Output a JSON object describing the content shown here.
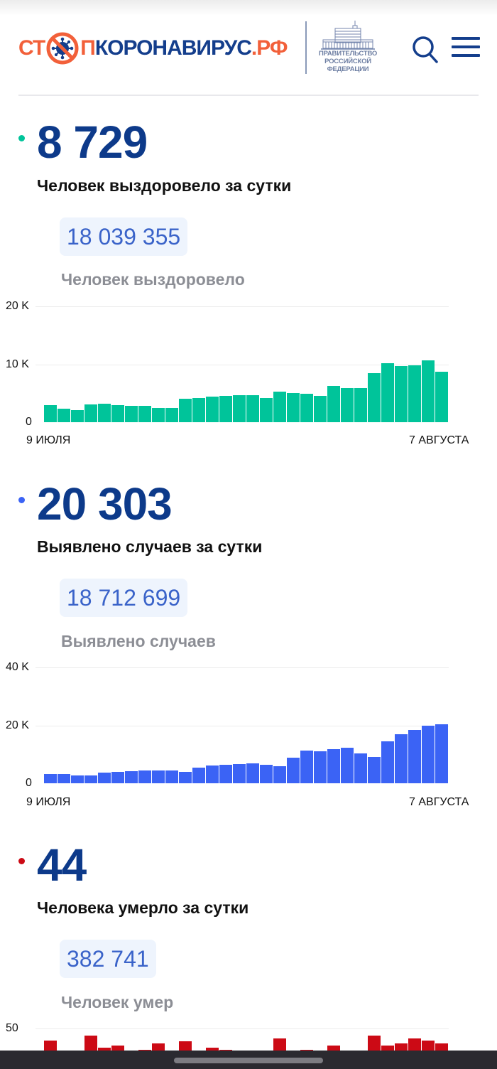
{
  "header": {
    "logo_text_left": "СТ",
    "logo_text_middle": "ПКОРОНАВИРУС",
    "logo_text_domain": ".РФ",
    "gov_logo_lines": [
      "ПРАВИТЕЛЬСТВО",
      "РОССИЙСКОЙ",
      "ФЕДЕРАЦИИ"
    ],
    "search_icon": "search-icon",
    "menu_icon": "hamburger-menu-icon"
  },
  "colors": {
    "brand_orange": "#f2603a",
    "brand_navy": "#143e8c",
    "recovered": "#00c49a",
    "cases": "#3b63f5",
    "deaths": "#cc0a15"
  },
  "stats": {
    "recovered": {
      "daily_value": "8 729",
      "daily_caption": "Человек выздоровело за сутки",
      "total_value": "18 039 355",
      "total_caption": "Человек выздоровело"
    },
    "cases": {
      "daily_value": "20 303",
      "daily_caption": "Выявлено случаев за сутки",
      "total_value": "18 712 699",
      "total_caption": "Выявлено случаев"
    },
    "deaths": {
      "daily_value": "44",
      "daily_caption": "Человека умерло за сутки",
      "total_value": "382 741",
      "total_caption": "Человек умер"
    }
  },
  "chart_data": [
    {
      "type": "bar",
      "title": "Человек выздоровело за сутки",
      "xlabel": "",
      "ylabel": "",
      "x_start_label": "9 ИЮЛЯ",
      "x_end_label": "7 АВГУСТА",
      "y_ticks": [
        "0",
        "10 K",
        "20 K"
      ],
      "ylim": [
        0,
        20000
      ],
      "grid": true,
      "color": "#00c49a",
      "values": [
        3000,
        2300,
        2100,
        3100,
        3200,
        3000,
        2800,
        2800,
        2400,
        2400,
        4100,
        4200,
        4400,
        4600,
        4700,
        4700,
        4200,
        5300,
        5000,
        4900,
        4600,
        6200,
        5900,
        5900,
        8500,
        10200,
        9700,
        9800,
        10700,
        8729
      ]
    },
    {
      "type": "bar",
      "title": "Выявлено случаев за сутки",
      "xlabel": "",
      "ylabel": "",
      "x_start_label": "9 ИЮЛЯ",
      "x_end_label": "7 АВГУСТА",
      "y_ticks": [
        "0",
        "20 K",
        "40 K"
      ],
      "ylim": [
        0,
        40000
      ],
      "grid": true,
      "color": "#3b63f5",
      "values": [
        3300,
        3100,
        2800,
        2800,
        3600,
        4000,
        4200,
        4500,
        4500,
        4300,
        3900,
        5400,
        6100,
        6300,
        6600,
        6900,
        6300,
        6000,
        8800,
        11300,
        11000,
        11900,
        12200,
        10400,
        9200,
        14400,
        16900,
        18400,
        19900,
        20303
      ]
    },
    {
      "type": "bar",
      "title": "Человека умерло за сутки (partially visible)",
      "y_ticks": [
        "50"
      ],
      "color": "#cc0a15",
      "visible_tops_note": "only top portion visible above the bottom bar"
    }
  ],
  "charts": {
    "recovered": {
      "y_top": "20 K",
      "y_mid": "10 K",
      "y_zero": "0",
      "x_start": "9 ИЮЛЯ",
      "x_end": "7 АВГУСТА"
    },
    "cases": {
      "y_top": "40 K",
      "y_mid": "20 K",
      "y_zero": "0",
      "x_start": "9 ИЮЛЯ",
      "x_end": "7 АВГУСТА"
    },
    "deaths": {
      "y_top": "50"
    }
  }
}
